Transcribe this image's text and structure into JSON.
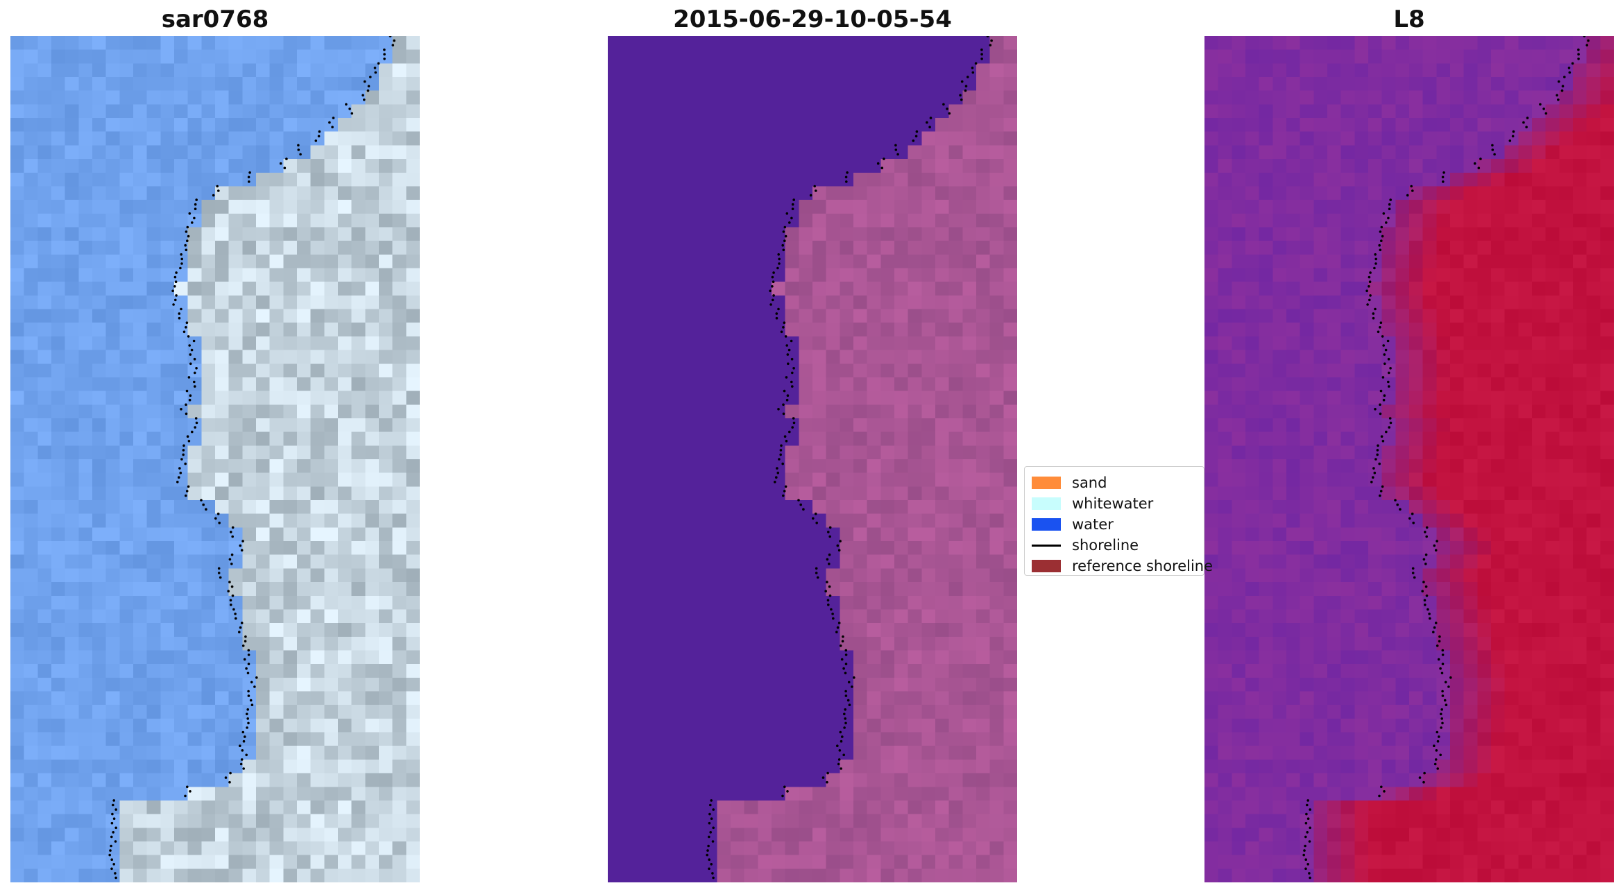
{
  "panels": [
    {
      "title": "sar0768",
      "variant": "rgb"
    },
    {
      "title": "2015-06-29-10-05-54",
      "variant": "classified"
    },
    {
      "title": "L8",
      "variant": "index"
    }
  ],
  "legend": {
    "items": [
      {
        "label": "sand",
        "type": "patch",
        "color": "#ff8c3a"
      },
      {
        "label": "whitewater",
        "type": "patch",
        "color": "#c8fdfd"
      },
      {
        "label": "water",
        "type": "patch",
        "color": "#1a52f0"
      },
      {
        "label": "shoreline",
        "type": "line",
        "color": "#000000"
      },
      {
        "label": "reference shoreline",
        "type": "patch",
        "color": "#9b2f33"
      }
    ]
  },
  "colors": {
    "water_class": "#54229a",
    "land_class": "#9a4e8a",
    "index_low": "#7a2ea8",
    "index_high": "#c2123f",
    "shoreline": "#000000"
  }
}
